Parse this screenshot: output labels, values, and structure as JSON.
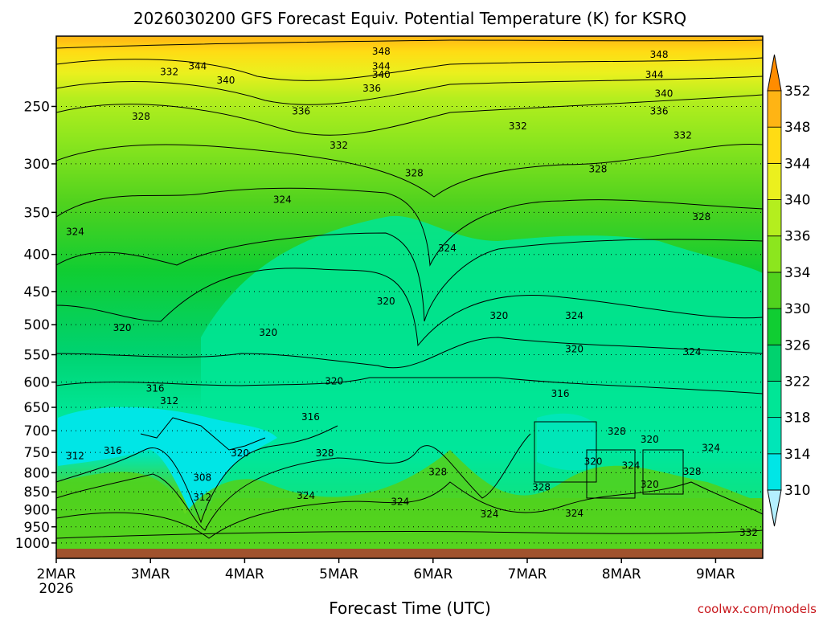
{
  "chart_data": {
    "type": "contour",
    "title": "2026030200 GFS Forecast Equiv. Potential Temperature (K) for KSRQ",
    "xlabel": "Forecast Time (UTC)",
    "ylabel": "",
    "x_day_range": [
      2.0,
      9.5
    ],
    "y_pressure_range_hpa": [
      1050,
      200
    ],
    "y_ticks": [
      250,
      300,
      350,
      400,
      450,
      500,
      550,
      600,
      650,
      700,
      750,
      800,
      850,
      900,
      950,
      1000
    ],
    "x_ticks": [
      {
        "day": 2,
        "label": "2MAR",
        "sub": "2026"
      },
      {
        "day": 3,
        "label": "3MAR",
        "sub": ""
      },
      {
        "day": 4,
        "label": "4MAR",
        "sub": ""
      },
      {
        "day": 5,
        "label": "5MAR",
        "sub": ""
      },
      {
        "day": 6,
        "label": "6MAR",
        "sub": ""
      },
      {
        "day": 7,
        "label": "7MAR",
        "sub": ""
      },
      {
        "day": 8,
        "label": "8MAR",
        "sub": ""
      },
      {
        "day": 9,
        "label": "9MAR",
        "sub": ""
      }
    ],
    "colorbar": {
      "levels": [
        310,
        314,
        318,
        322,
        326,
        330,
        334,
        336,
        340,
        344,
        348,
        352
      ],
      "colors": [
        "#00e6e6",
        "#00e6b8",
        "#00e696",
        "#00d26e",
        "#10cd32",
        "#50d21e",
        "#8ce61e",
        "#b4ee1e",
        "#ebf01e",
        "#ffdc14",
        "#ffb414",
        "#ff9614"
      ],
      "under_color": "#b4f0ff",
      "over_color": "#ff8c00"
    },
    "contour_labels": [
      {
        "text": "344",
        "day": 3.5,
        "p": 220
      },
      {
        "text": "348",
        "day": 5.45,
        "p": 210
      },
      {
        "text": "344",
        "day": 5.45,
        "p": 220
      },
      {
        "text": "340",
        "day": 5.45,
        "p": 226
      },
      {
        "text": "336",
        "day": 5.35,
        "p": 236
      },
      {
        "text": "348",
        "day": 8.4,
        "p": 212
      },
      {
        "text": "344",
        "day": 8.35,
        "p": 226
      },
      {
        "text": "340",
        "day": 8.45,
        "p": 240
      },
      {
        "text": "336",
        "day": 8.4,
        "p": 254
      },
      {
        "text": "332",
        "day": 8.65,
        "p": 274
      },
      {
        "text": "332",
        "day": 3.2,
        "p": 224
      },
      {
        "text": "340",
        "day": 3.8,
        "p": 230
      },
      {
        "text": "336",
        "day": 4.6,
        "p": 254
      },
      {
        "text": "328",
        "day": 2.9,
        "p": 258
      },
      {
        "text": "332",
        "day": 6.9,
        "p": 266
      },
      {
        "text": "332",
        "day": 5.0,
        "p": 283
      },
      {
        "text": "328",
        "day": 5.8,
        "p": 309
      },
      {
        "text": "328",
        "day": 7.75,
        "p": 305
      },
      {
        "text": "324",
        "day": 4.4,
        "p": 336
      },
      {
        "text": "324",
        "day": 2.2,
        "p": 372
      },
      {
        "text": "328",
        "day": 8.85,
        "p": 355
      },
      {
        "text": "324",
        "day": 6.15,
        "p": 392
      },
      {
        "text": "320",
        "day": 5.5,
        "p": 464
      },
      {
        "text": "320",
        "day": 6.7,
        "p": 486
      },
      {
        "text": "324",
        "day": 7.5,
        "p": 486
      },
      {
        "text": "320",
        "day": 2.7,
        "p": 505
      },
      {
        "text": "320",
        "day": 4.25,
        "p": 513
      },
      {
        "text": "320",
        "day": 7.5,
        "p": 540
      },
      {
        "text": "324",
        "day": 8.75,
        "p": 545
      },
      {
        "text": "320",
        "day": 4.95,
        "p": 598
      },
      {
        "text": "316",
        "day": 3.05,
        "p": 612
      },
      {
        "text": "312",
        "day": 3.2,
        "p": 637
      },
      {
        "text": "316",
        "day": 7.35,
        "p": 622
      },
      {
        "text": "316",
        "day": 4.7,
        "p": 670
      },
      {
        "text": "328",
        "day": 7.95,
        "p": 702
      },
      {
        "text": "320",
        "day": 8.3,
        "p": 720
      },
      {
        "text": "324",
        "day": 8.95,
        "p": 739
      },
      {
        "text": "316",
        "day": 2.6,
        "p": 746
      },
      {
        "text": "320",
        "day": 3.95,
        "p": 752
      },
      {
        "text": "328",
        "day": 4.85,
        "p": 752
      },
      {
        "text": "312",
        "day": 2.2,
        "p": 758
      },
      {
        "text": "320",
        "day": 7.7,
        "p": 772
      },
      {
        "text": "324",
        "day": 8.1,
        "p": 782
      },
      {
        "text": "328",
        "day": 8.75,
        "p": 797
      },
      {
        "text": "328",
        "day": 6.05,
        "p": 798
      },
      {
        "text": "308",
        "day": 3.55,
        "p": 813
      },
      {
        "text": "320",
        "day": 8.3,
        "p": 830
      },
      {
        "text": "328",
        "day": 7.15,
        "p": 838
      },
      {
        "text": "312",
        "day": 3.55,
        "p": 865
      },
      {
        "text": "324",
        "day": 4.65,
        "p": 860
      },
      {
        "text": "324",
        "day": 5.65,
        "p": 877
      },
      {
        "text": "324",
        "day": 6.6,
        "p": 912
      },
      {
        "text": "324",
        "day": 7.5,
        "p": 910
      },
      {
        "text": "332",
        "day": 9.35,
        "p": 968
      }
    ]
  },
  "credit": "coolwx.com/models"
}
